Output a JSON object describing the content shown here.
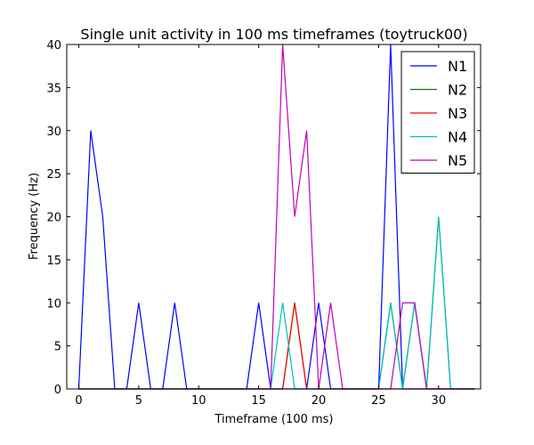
{
  "chart_data": {
    "type": "line",
    "title": "Single unit activity in 100 ms timeframes (toytruck00)",
    "xlabel": "Timeframe (100 ms)",
    "ylabel": "Frequency (Hz)",
    "xlim": [
      -1,
      33.5
    ],
    "ylim": [
      0,
      40
    ],
    "xticks": [
      0,
      5,
      10,
      15,
      20,
      25,
      30
    ],
    "yticks": [
      0,
      5,
      10,
      15,
      20,
      25,
      30,
      35,
      40
    ],
    "grid": false,
    "legend_position": "top-right",
    "x": [
      0,
      1,
      2,
      3,
      4,
      5,
      6,
      7,
      8,
      9,
      10,
      11,
      12,
      13,
      14,
      15,
      16,
      17,
      18,
      19,
      20,
      21,
      22,
      23,
      24,
      25,
      26,
      27,
      28,
      29,
      30,
      31,
      32,
      33
    ],
    "series": [
      {
        "name": "N1",
        "color": "#0000ff",
        "values": [
          0,
          30,
          20,
          0,
          0,
          10,
          0,
          0,
          10,
          0,
          0,
          0,
          0,
          0,
          0,
          10,
          0,
          0,
          0,
          0,
          10,
          0,
          0,
          0,
          0,
          0,
          40,
          0,
          0,
          0,
          0,
          0,
          0,
          0
        ]
      },
      {
        "name": "N2",
        "color": "#008000",
        "values": [
          0,
          0,
          0,
          0,
          0,
          0,
          0,
          0,
          0,
          0,
          0,
          0,
          0,
          0,
          0,
          0,
          0,
          0,
          10,
          0,
          0,
          0,
          0,
          0,
          0,
          0,
          10,
          0,
          10,
          0,
          20,
          0,
          0,
          0
        ]
      },
      {
        "name": "N3",
        "color": "#ff0000",
        "values": [
          0,
          0,
          0,
          0,
          0,
          0,
          0,
          0,
          0,
          0,
          0,
          0,
          0,
          0,
          0,
          0,
          0,
          0,
          10,
          0,
          0,
          0,
          0,
          0,
          0,
          0,
          0,
          0,
          0,
          0,
          0,
          0,
          0,
          0
        ]
      },
      {
        "name": "N4",
        "color": "#00bfbf",
        "values": [
          0,
          0,
          0,
          0,
          0,
          0,
          0,
          0,
          0,
          0,
          0,
          0,
          0,
          0,
          0,
          0,
          0,
          10,
          0,
          0,
          0,
          0,
          0,
          0,
          0,
          0,
          10,
          0,
          10,
          0,
          20,
          0,
          0,
          0
        ]
      },
      {
        "name": "N5",
        "color": "#bf00bf",
        "values": [
          0,
          0,
          0,
          0,
          0,
          0,
          0,
          0,
          0,
          0,
          0,
          0,
          0,
          0,
          0,
          0,
          0,
          40,
          20,
          30,
          0,
          10,
          0,
          0,
          0,
          0,
          0,
          10,
          10,
          0,
          0,
          0,
          0,
          0
        ]
      }
    ]
  }
}
